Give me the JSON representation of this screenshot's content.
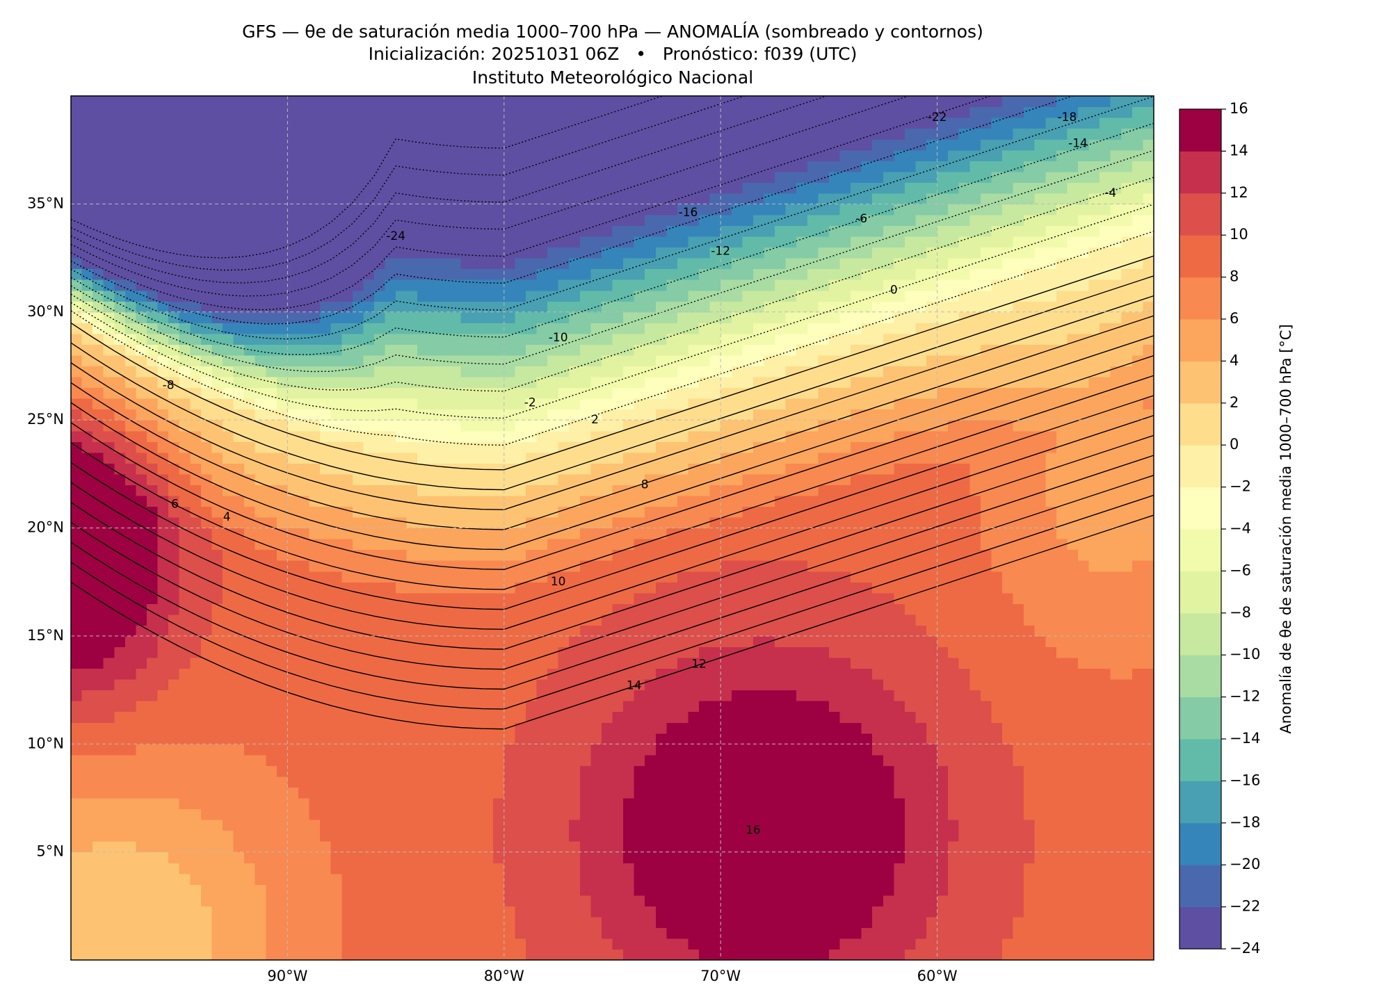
{
  "title": {
    "line1": "GFS — θe de saturación media 1000–700 hPa — ANOMALÍA (sombreado y contornos)",
    "line2": "Inicialización: 20251031 06Z   •   Pronóstico: f039 (UTC)",
    "line3": "Instituto Meteorológico Nacional"
  },
  "map": {
    "xlim": [
      -100,
      -50
    ],
    "ylim": [
      0,
      40
    ],
    "xticks": [
      {
        "value": -90,
        "label": "90°W"
      },
      {
        "value": -80,
        "label": "80°W"
      },
      {
        "value": -70,
        "label": "70°W"
      },
      {
        "value": -60,
        "label": "60°W"
      }
    ],
    "yticks": [
      {
        "value": 5,
        "label": "5°N"
      },
      {
        "value": 10,
        "label": "10°N"
      },
      {
        "value": 15,
        "label": "15°N"
      },
      {
        "value": 20,
        "label": "20°N"
      },
      {
        "value": 25,
        "label": "25°N"
      },
      {
        "value": 30,
        "label": "30°N"
      },
      {
        "value": 35,
        "label": "35°N"
      }
    ],
    "grid": true,
    "contour_labels": [
      -24,
      -22,
      -18,
      -16,
      -14,
      -12,
      -10,
      -8,
      -6,
      -4,
      -2,
      0,
      2,
      4,
      6,
      8,
      10,
      12,
      14,
      16
    ]
  },
  "colorbar": {
    "label": "Anomalía de θe de saturación media 1000–700 hPa [°C]",
    "lim": [
      -24,
      16
    ],
    "ticks": [
      {
        "value": -24,
        "label": "−24"
      },
      {
        "value": -22,
        "label": "−22"
      },
      {
        "value": -20,
        "label": "−20"
      },
      {
        "value": -18,
        "label": "−18"
      },
      {
        "value": -16,
        "label": "−16"
      },
      {
        "value": -14,
        "label": "−14"
      },
      {
        "value": -12,
        "label": "−12"
      },
      {
        "value": -10,
        "label": "−10"
      },
      {
        "value": -8,
        "label": "−8"
      },
      {
        "value": -6,
        "label": "−6"
      },
      {
        "value": -4,
        "label": "−4"
      },
      {
        "value": -2,
        "label": "−2"
      },
      0,
      2,
      4,
      6,
      8,
      10,
      12,
      14,
      16
    ],
    "colors": [
      "#5e4fa2",
      "#4a68ae",
      "#3585bb",
      "#48a0b2",
      "#62bba9",
      "#84cba6",
      "#a8dca3",
      "#c7e89f",
      "#e1f3a0",
      "#f2faac",
      "#fefebd",
      "#fef0a7",
      "#fedd8d",
      "#fdc372",
      "#fca55d",
      "#f88950",
      "#ee6a44",
      "#dd4f4a",
      "#c6304d",
      "#9e0142"
    ]
  }
}
